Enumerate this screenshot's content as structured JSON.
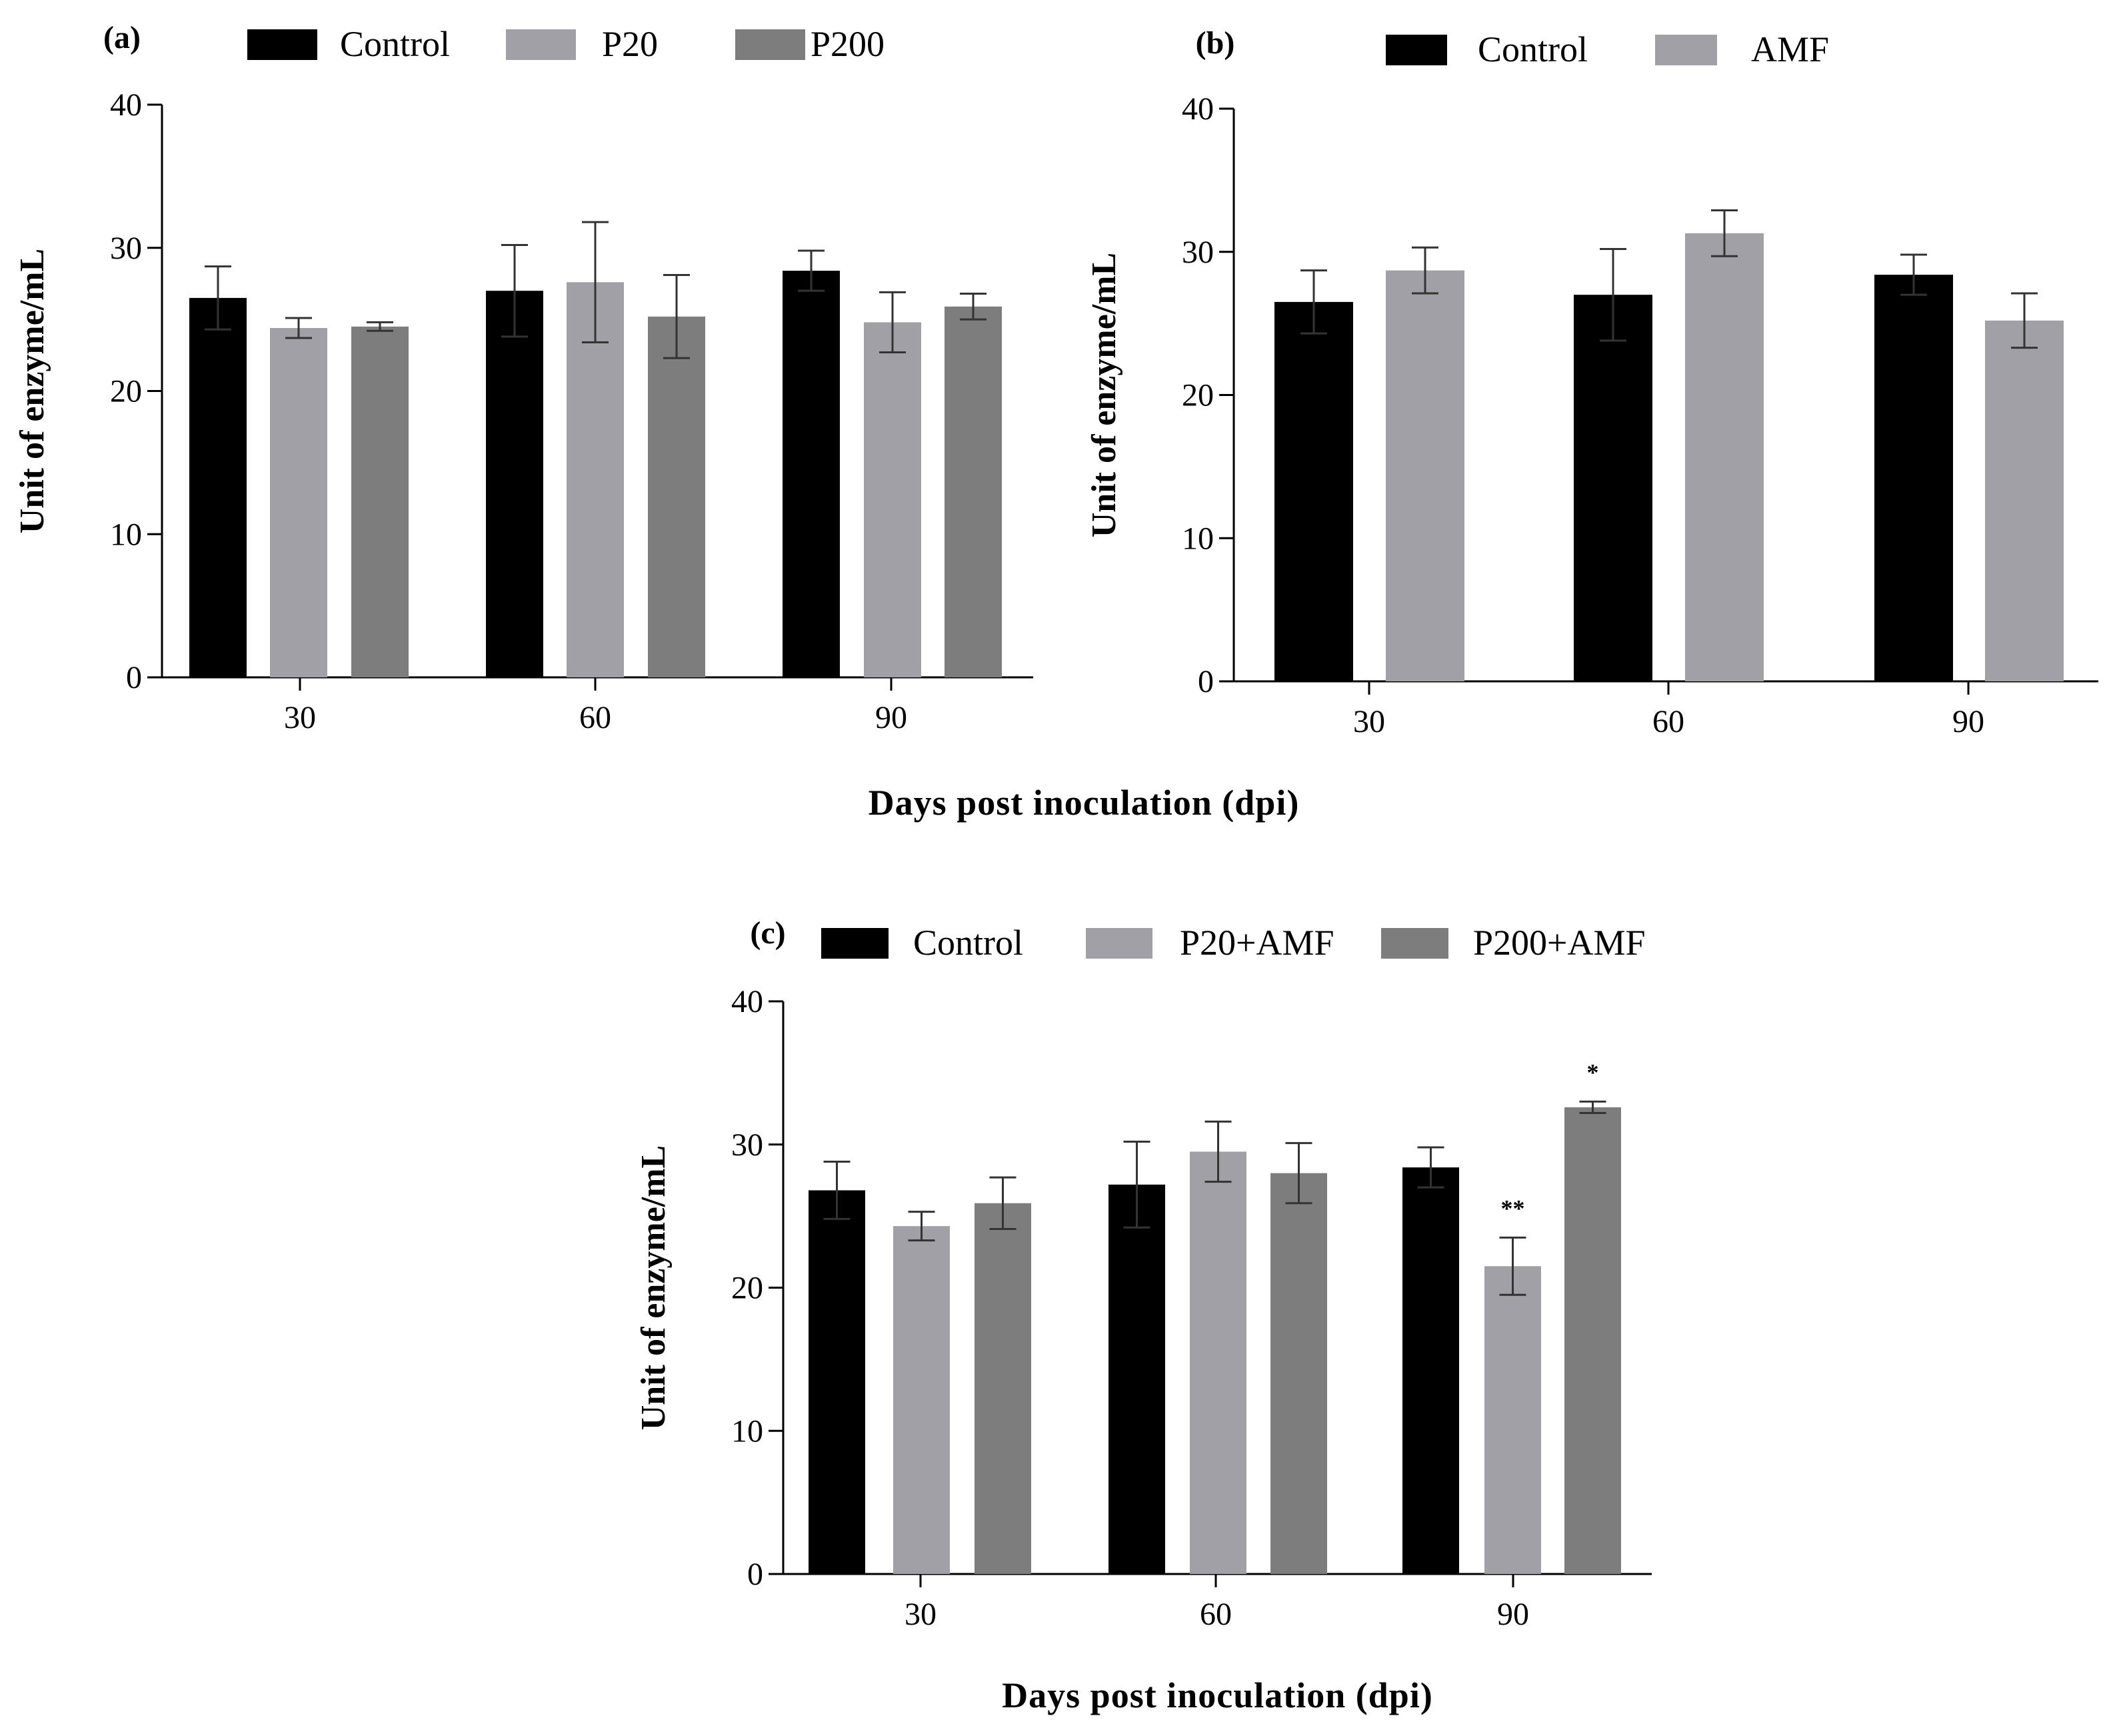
{
  "chart_data": [
    {
      "panel_label": "(a)",
      "type": "bar",
      "categories": [
        "30",
        "60",
        "90"
      ],
      "ylabel": "Unit of enzyme/mL",
      "xlabel": "",
      "ylim": [
        0,
        40
      ],
      "yticks": [
        0,
        10,
        20,
        30,
        40
      ],
      "legend_position": "top",
      "series": [
        {
          "name": "Control",
          "color": "#000000",
          "values": [
            26.5,
            27.0,
            28.4
          ],
          "errors": [
            2.2,
            3.2,
            1.4
          ]
        },
        {
          "name": "P20",
          "color": "#a0a0a6",
          "values": [
            24.4,
            27.6,
            24.8
          ],
          "errors": [
            0.7,
            4.2,
            2.1
          ]
        },
        {
          "name": "P200",
          "color": "#7d7d7d",
          "values": [
            24.5,
            25.2,
            25.9
          ],
          "errors": [
            0.3,
            2.9,
            0.9
          ]
        }
      ],
      "annotations": [
        [
          "",
          "",
          ""
        ],
        [
          "",
          "",
          ""
        ],
        [
          "",
          "",
          ""
        ]
      ]
    },
    {
      "panel_label": "(b)",
      "type": "bar",
      "categories": [
        "30",
        "60",
        "90"
      ],
      "ylabel": "Unit of enzyme/mL",
      "xlabel": "",
      "ylim": [
        0,
        40
      ],
      "yticks": [
        0,
        10,
        20,
        30,
        40
      ],
      "legend_position": "top",
      "series": [
        {
          "name": "Control",
          "color": "#000000",
          "values": [
            26.5,
            27.0,
            28.4
          ],
          "errors": [
            2.2,
            3.2,
            1.4
          ]
        },
        {
          "name": "AMF",
          "color": "#a0a0a6",
          "values": [
            28.7,
            31.3,
            25.2
          ],
          "errors": [
            1.6,
            1.6,
            1.9
          ]
        }
      ],
      "annotations": [
        [
          "",
          "",
          ""
        ],
        [
          "",
          "",
          ""
        ]
      ]
    },
    {
      "panel_label": "(c)",
      "type": "bar",
      "categories": [
        "30",
        "60",
        "90"
      ],
      "ylabel": "Unit of enzyme/mL",
      "xlabel": "Days post inoculation (dpi)",
      "ylim": [
        0,
        40
      ],
      "yticks": [
        0,
        10,
        20,
        30,
        40
      ],
      "legend_position": "top",
      "series": [
        {
          "name": "Control",
          "color": "#000000",
          "values": [
            26.8,
            27.2,
            28.4
          ],
          "errors": [
            2.0,
            3.0,
            1.4
          ]
        },
        {
          "name": "P20+AMF",
          "color": "#a0a0a6",
          "values": [
            24.3,
            29.5,
            21.5
          ],
          "errors": [
            1.0,
            2.1,
            2.0
          ]
        },
        {
          "name": "P200+AMF",
          "color": "#7d7d7d",
          "values": [
            25.9,
            28.0,
            32.6
          ],
          "errors": [
            1.8,
            2.1,
            0.4
          ]
        }
      ],
      "annotations": [
        [
          "",
          "",
          ""
        ],
        [
          "",
          "",
          "**"
        ],
        [
          "",
          "",
          "*"
        ]
      ]
    }
  ],
  "shared_xlabel": "Days post inoculation (dpi)"
}
